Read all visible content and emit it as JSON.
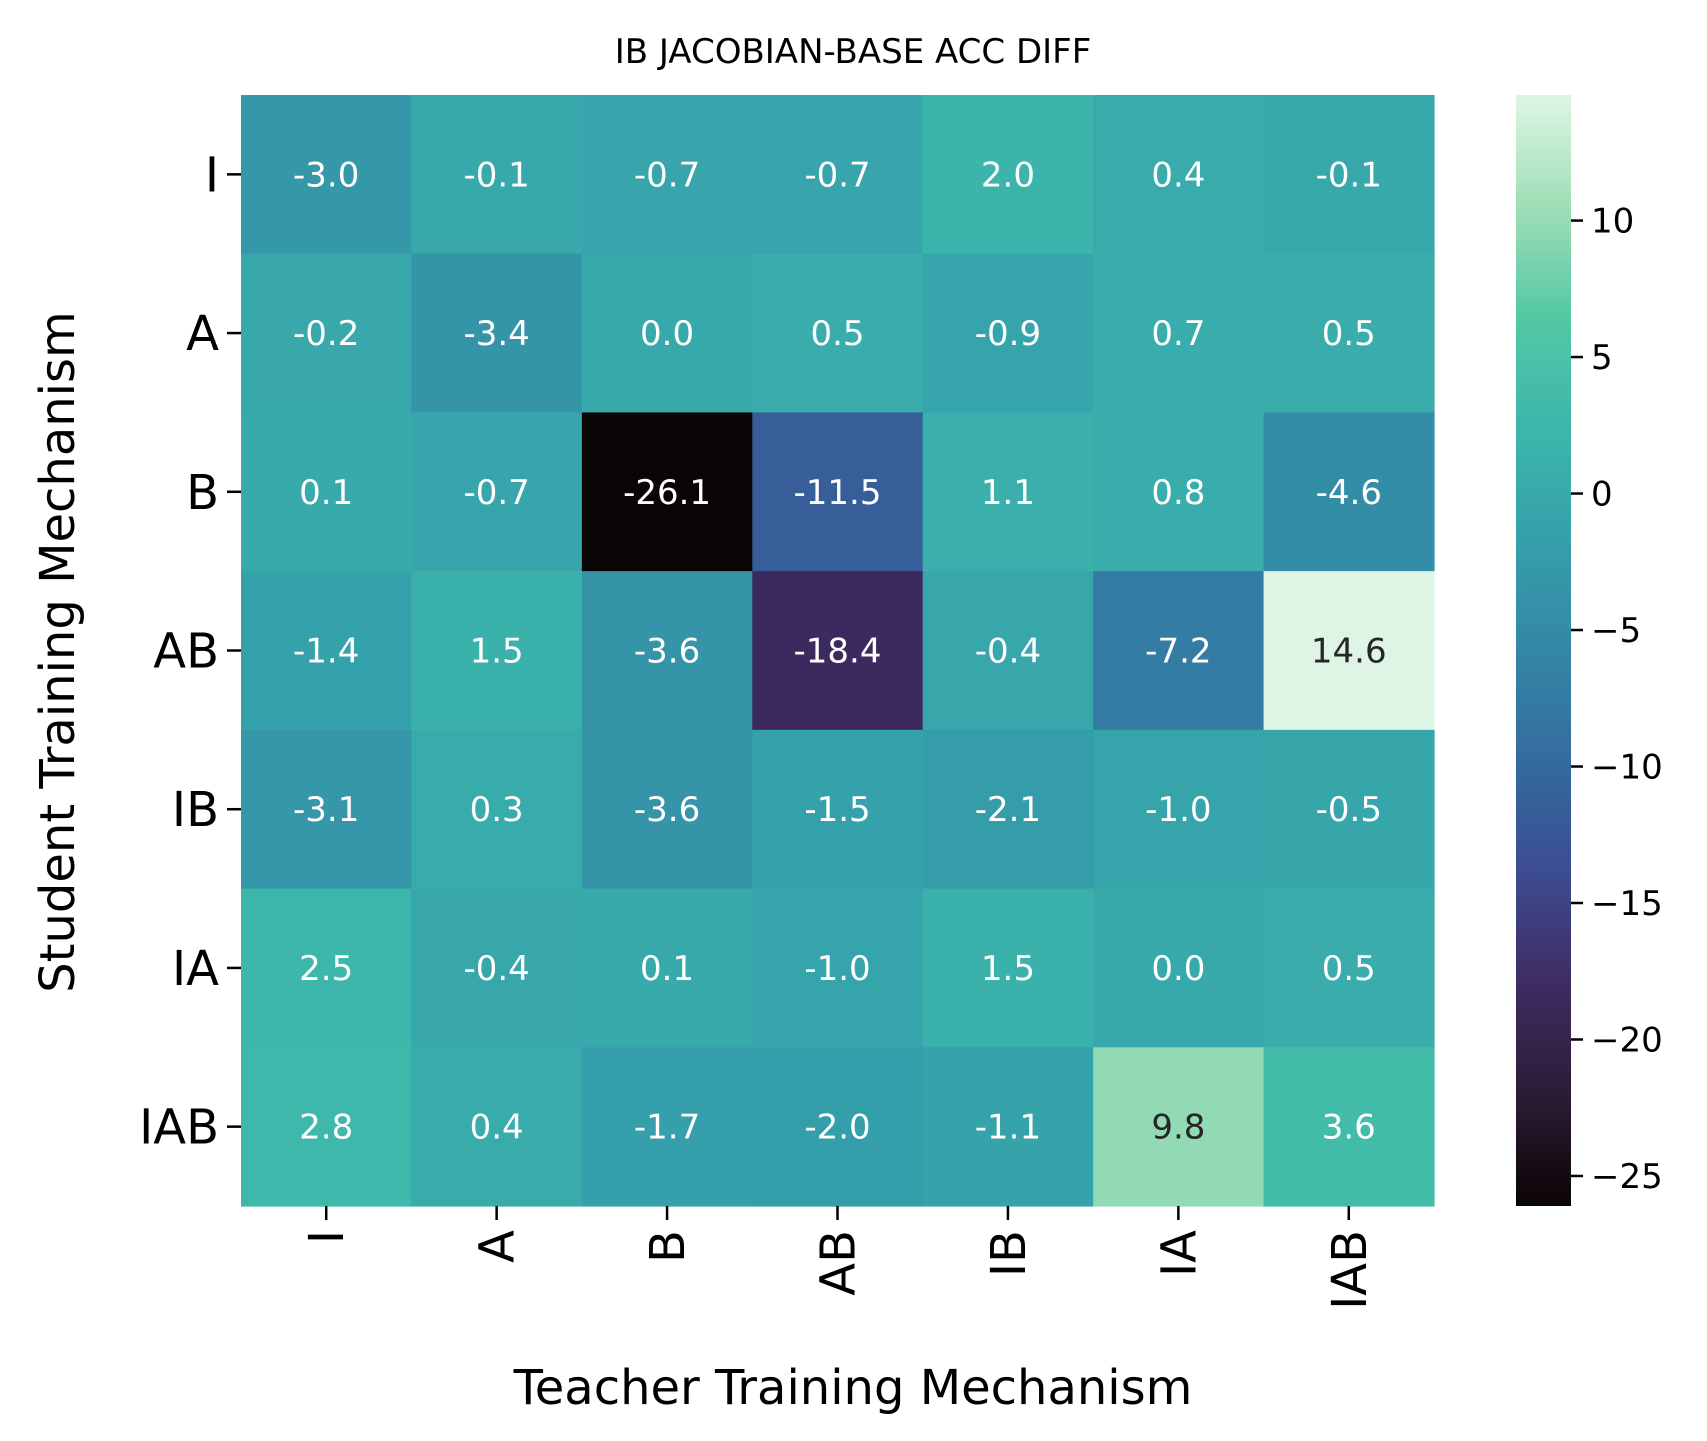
{
  "chart_data": {
    "type": "heatmap",
    "title": "IB JACOBIAN-BASE ACC DIFF",
    "xlabel": "Teacher Training Mechanism",
    "ylabel": "Student Training Mechanism",
    "x_categories": [
      "I",
      "A",
      "B",
      "AB",
      "IB",
      "IA",
      "IAB"
    ],
    "y_categories": [
      "I",
      "A",
      "B",
      "AB",
      "IB",
      "IA",
      "IAB"
    ],
    "values": [
      [
        -3.0,
        -0.1,
        -0.7,
        -0.7,
        2.0,
        0.4,
        -0.1
      ],
      [
        -0.2,
        -3.4,
        0.0,
        0.5,
        -0.9,
        0.7,
        0.5
      ],
      [
        0.1,
        -0.7,
        -26.1,
        -11.5,
        1.1,
        0.8,
        -4.6
      ],
      [
        -1.4,
        1.5,
        -3.6,
        -18.4,
        -0.4,
        -7.2,
        14.6
      ],
      [
        -3.1,
        0.3,
        -3.6,
        -1.5,
        -2.1,
        -1.0,
        -0.5
      ],
      [
        2.5,
        -0.4,
        0.1,
        -1.0,
        1.5,
        0.0,
        0.5
      ],
      [
        2.8,
        0.4,
        -1.7,
        -2.0,
        -1.1,
        9.8,
        3.6
      ]
    ],
    "colormap": "mako",
    "colorbar": {
      "range": [
        -26.1,
        14.6
      ],
      "ticks": [
        10,
        5,
        0,
        -5,
        -10,
        -15,
        -20,
        -25
      ],
      "tick_labels": [
        "10",
        "5",
        "0",
        "−5",
        "−10",
        "−15",
        "−20",
        "−25"
      ]
    },
    "annotation_colors": {
      "light": "#ffffff",
      "dark": "#262626"
    }
  }
}
